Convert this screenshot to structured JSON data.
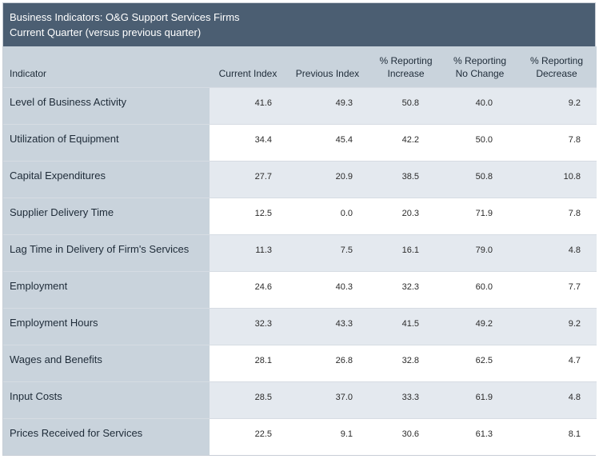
{
  "title": {
    "line1": "Business Indicators: O&G Support Services Firms",
    "line2": "Current Quarter (versus previous quarter)"
  },
  "headers": {
    "indicator": "Indicator",
    "current": "Current Index",
    "previous": "Previous Index",
    "increase_1": "% Reporting",
    "increase_2": "Increase",
    "nochange_1": "% Reporting",
    "nochange_2": "No Change",
    "decrease_1": "% Reporting",
    "decrease_2": "Decrease"
  },
  "rows": [
    {
      "indicator": "Level of Business Activity",
      "current": "41.6",
      "previous": "49.3",
      "increase": "50.8",
      "no_change": "40.0",
      "decrease": "9.2"
    },
    {
      "indicator": "Utilization of Equipment",
      "current": "34.4",
      "previous": "45.4",
      "increase": "42.2",
      "no_change": "50.0",
      "decrease": "7.8"
    },
    {
      "indicator": "Capital Expenditures",
      "current": "27.7",
      "previous": "20.9",
      "increase": "38.5",
      "no_change": "50.8",
      "decrease": "10.8"
    },
    {
      "indicator": "Supplier Delivery Time",
      "current": "12.5",
      "previous": "0.0",
      "increase": "20.3",
      "no_change": "71.9",
      "decrease": "7.8"
    },
    {
      "indicator": "Lag Time in Delivery of Firm's Services",
      "current": "11.3",
      "previous": "7.5",
      "increase": "16.1",
      "no_change": "79.0",
      "decrease": "4.8"
    },
    {
      "indicator": "Employment",
      "current": "24.6",
      "previous": "40.3",
      "increase": "32.3",
      "no_change": "60.0",
      "decrease": "7.7"
    },
    {
      "indicator": "Employment Hours",
      "current": "32.3",
      "previous": "43.3",
      "increase": "41.5",
      "no_change": "49.2",
      "decrease": "9.2"
    },
    {
      "indicator": "Wages and Benefits",
      "current": "28.1",
      "previous": "26.8",
      "increase": "32.8",
      "no_change": "62.5",
      "decrease": "4.7"
    },
    {
      "indicator": "Input Costs",
      "current": "28.5",
      "previous": "37.0",
      "increase": "33.3",
      "no_change": "61.9",
      "decrease": "4.8"
    },
    {
      "indicator": "Prices Received for Services",
      "current": "22.5",
      "previous": "9.1",
      "increase": "30.6",
      "no_change": "61.3",
      "decrease": "8.1"
    }
  ],
  "colors": {
    "title_bg": "#4b5e72",
    "header_bg": "#c9d3dc",
    "alt_row_bg": "#e4e9ef"
  }
}
